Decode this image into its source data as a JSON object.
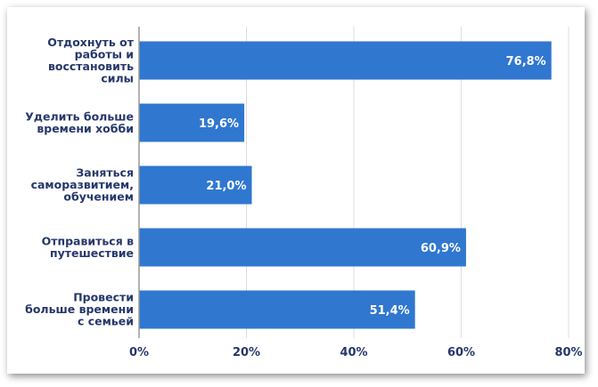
{
  "chart_data": {
    "type": "bar",
    "orientation": "horizontal",
    "categories": [
      [
        "Отдохнуть от",
        "работы и",
        "восстановить",
        "силы"
      ],
      [
        "Уделить больше",
        "времени хобби"
      ],
      [
        "Заняться",
        "саморазвитием,",
        "обучением"
      ],
      [
        "Отправиться в",
        "путешествие"
      ],
      [
        "Провести",
        "больше времени",
        "с семьей"
      ]
    ],
    "values": [
      76.8,
      19.6,
      21.0,
      60.9,
      51.4
    ],
    "data_labels": [
      "76,8%",
      "19,6%",
      "21,0%",
      "60,9%",
      "51,4%"
    ],
    "xlim": [
      0,
      80
    ],
    "x_ticks": [
      0,
      20,
      40,
      60,
      80
    ],
    "x_tick_labels": [
      "0%",
      "20%",
      "40%",
      "60%",
      "80%"
    ],
    "grid": true,
    "legend": "none",
    "colors": {
      "bar": "#3077d0",
      "text": "#26376b",
      "grid": "#dddddd",
      "axis": "#999999"
    }
  }
}
